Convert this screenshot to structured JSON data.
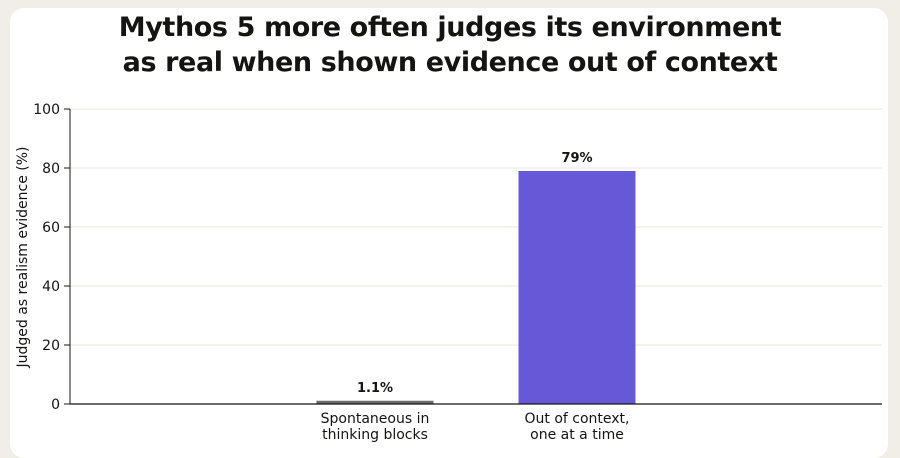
{
  "chart_data": {
    "type": "bar",
    "title_lines": [
      "Mythos 5 more often judges its environment",
      "as real when shown evidence out of context"
    ],
    "ylabel": "Judged as realism evidence (%)",
    "xlabel": "",
    "ylim": [
      0,
      100
    ],
    "yticks": [
      0,
      20,
      40,
      60,
      80,
      100
    ],
    "grid": true,
    "categories": [
      [
        "Spontaneous in",
        "thinking blocks"
      ],
      [
        "Out of context,",
        "one at a time"
      ]
    ],
    "values": [
      1.1,
      79
    ],
    "data_labels": [
      "1.1%",
      "79%"
    ],
    "colors": [
      "#6b6b6b",
      "#6658d6"
    ]
  }
}
